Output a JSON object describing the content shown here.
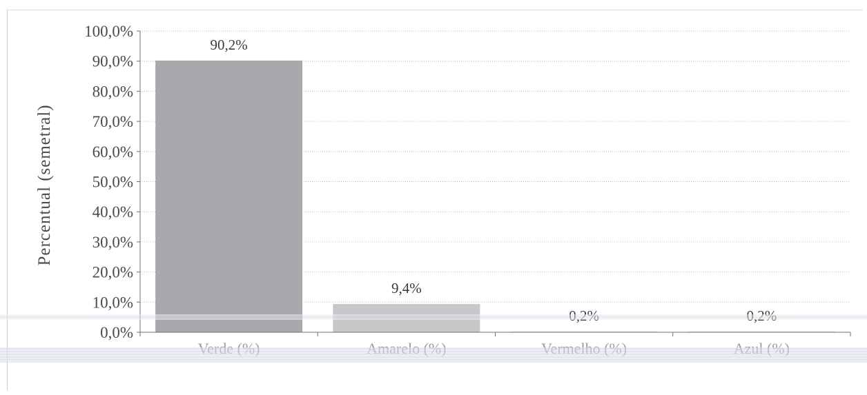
{
  "chart_data": {
    "type": "bar",
    "title": "",
    "xlabel": "",
    "ylabel": "Percentual (semetral)",
    "categories": [
      "Verde (%)",
      "Amarelo (%)",
      "Vermelho (%)",
      "Azul (%)"
    ],
    "values": [
      90.2,
      9.4,
      0.2,
      0.2
    ],
    "data_labels": [
      "90,2%",
      "9,4%",
      "0,2%",
      "0,2%"
    ],
    "ylim": [
      0,
      100
    ],
    "yticks": [
      0,
      10,
      20,
      30,
      40,
      50,
      60,
      70,
      80,
      90,
      100
    ],
    "ytick_labels": [
      "0,0%",
      "10,0%",
      "20,0%",
      "30,0%",
      "40,0%",
      "50,0%",
      "60,0%",
      "70,0%",
      "80,0%",
      "90,0%",
      "100,0%"
    ],
    "grid": true,
    "legend": "none",
    "bar_colors": [
      "#a9a9ad",
      "#c8c8cb",
      "#b8b8bb",
      "#b8b8bb"
    ]
  }
}
